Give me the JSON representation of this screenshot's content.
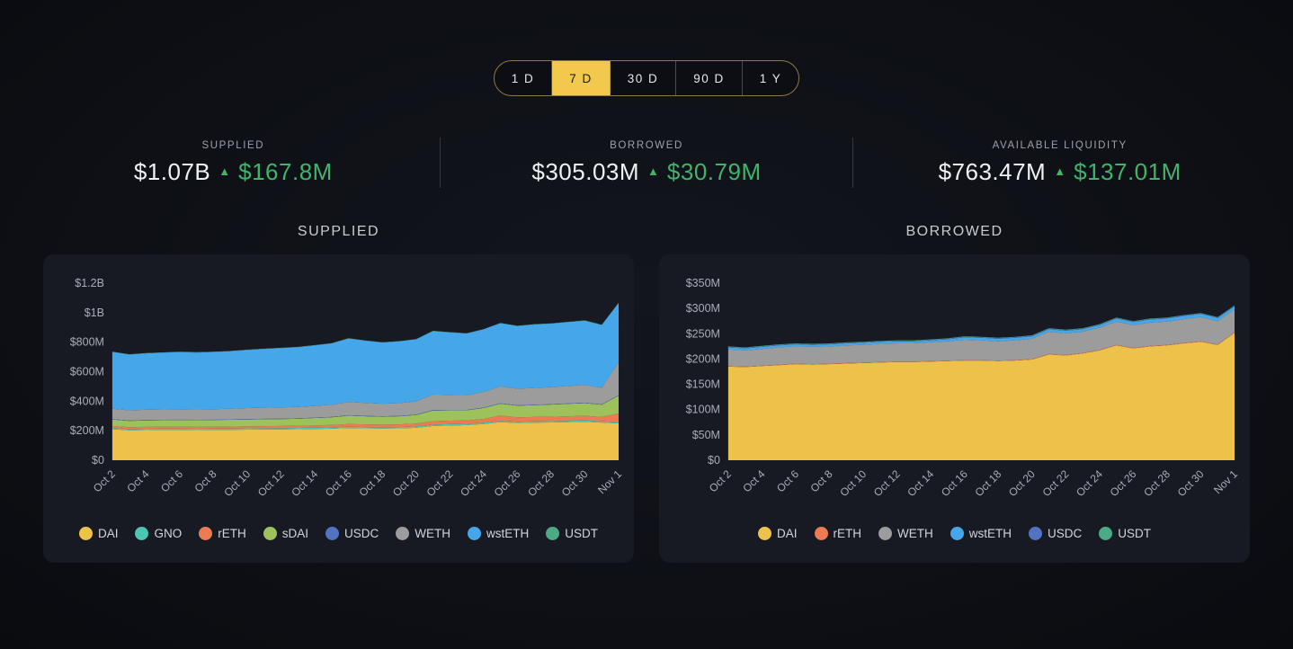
{
  "timeframe": {
    "options": [
      "1 D",
      "7 D",
      "30 D",
      "90 D",
      "1 Y"
    ],
    "active": "7 D"
  },
  "stats": [
    {
      "label": "SUPPLIED",
      "value": "$1.07B",
      "delta": "$167.8M",
      "direction": "up"
    },
    {
      "label": "BORROWED",
      "value": "$305.03M",
      "delta": "$30.79M",
      "direction": "up"
    },
    {
      "label": "AVAILABLE LIQUIDITY",
      "value": "$763.47M",
      "delta": "$137.01M",
      "direction": "up"
    }
  ],
  "colors": {
    "accent_green": "#3fb56b",
    "selector_active": "#f2c94c",
    "selector_border": "#8f7a42",
    "panel_bg": "#181a23"
  },
  "chart_data": [
    {
      "type": "area",
      "stacked": true,
      "title": "SUPPLIED",
      "unit": "$M",
      "legend_position": "bottom",
      "grid": false,
      "ylim": [
        0,
        1200
      ],
      "yticks": [
        {
          "label": "$1.2B",
          "value": 1200
        },
        {
          "label": "$1B",
          "value": 1000
        },
        {
          "label": "$800M",
          "value": 800
        },
        {
          "label": "$600M",
          "value": 600
        },
        {
          "label": "$400M",
          "value": 400
        },
        {
          "label": "$200M",
          "value": 200
        },
        {
          "label": "$0",
          "value": 0
        }
      ],
      "x": [
        "Oct 2",
        "Oct 3",
        "Oct 4",
        "Oct 5",
        "Oct 6",
        "Oct 7",
        "Oct 8",
        "Oct 9",
        "Oct 10",
        "Oct 11",
        "Oct 12",
        "Oct 13",
        "Oct 14",
        "Oct 15",
        "Oct 16",
        "Oct 17",
        "Oct 18",
        "Oct 19",
        "Oct 20",
        "Oct 21",
        "Oct 22",
        "Oct 23",
        "Oct 24",
        "Oct 25",
        "Oct 26",
        "Oct 27",
        "Oct 28",
        "Oct 29",
        "Oct 30",
        "Oct 31",
        "Nov 1"
      ],
      "xtick_indices": [
        0,
        2,
        4,
        6,
        8,
        10,
        12,
        14,
        16,
        18,
        20,
        22,
        24,
        26,
        28,
        30
      ],
      "series": [
        {
          "name": "DAI",
          "color": "#edc24a",
          "values": [
            210,
            202,
            204,
            205,
            205,
            204,
            205,
            206,
            207,
            208,
            209,
            210,
            212,
            214,
            218,
            216,
            215,
            216,
            220,
            232,
            235,
            238,
            245,
            258,
            252,
            254,
            256,
            258,
            260,
            255,
            250
          ]
        },
        {
          "name": "GNO",
          "color": "#4cc6b2",
          "values": [
            9,
            9,
            9,
            9,
            9,
            9,
            9,
            9,
            9,
            9,
            9,
            9,
            9,
            9,
            9,
            9,
            9,
            9,
            9,
            9,
            9,
            9,
            9,
            9,
            9,
            9,
            9,
            9,
            9,
            9,
            9
          ]
        },
        {
          "name": "rETH",
          "color": "#ed7b52",
          "values": [
            13,
            13,
            13,
            13,
            13,
            13,
            13,
            13,
            14,
            14,
            14,
            14,
            15,
            16,
            18,
            18,
            17,
            18,
            19,
            24,
            24,
            23,
            26,
            36,
            30,
            30,
            30,
            31,
            32,
            30,
            58
          ]
        },
        {
          "name": "sDAI",
          "color": "#9ec25b",
          "values": [
            44,
            43,
            44,
            44,
            45,
            45,
            45,
            46,
            46,
            47,
            47,
            48,
            50,
            52,
            57,
            55,
            54,
            55,
            58,
            72,
            70,
            68,
            74,
            80,
            78,
            80,
            82,
            84,
            86,
            82,
            120
          ]
        },
        {
          "name": "USDC",
          "color": "#5273c2",
          "values": [
            3,
            3,
            3,
            3,
            3,
            3,
            3,
            3,
            3,
            3,
            3,
            3,
            3,
            3,
            3,
            3,
            3,
            3,
            3,
            3,
            3,
            3,
            3,
            3,
            3,
            3,
            3,
            3,
            3,
            3,
            3
          ]
        },
        {
          "name": "WETH",
          "color": "#9c9c9c",
          "values": [
            70,
            68,
            69,
            70,
            71,
            70,
            71,
            72,
            74,
            75,
            76,
            77,
            79,
            82,
            90,
            87,
            85,
            86,
            90,
            105,
            102,
            100,
            106,
            115,
            112,
            114,
            116,
            118,
            120,
            112,
            225
          ]
        },
        {
          "name": "wstETH",
          "color": "#45a7ea",
          "values": [
            385,
            378,
            382,
            385,
            387,
            386,
            388,
            390,
            394,
            398,
            402,
            405,
            410,
            416,
            430,
            422,
            415,
            418,
            420,
            430,
            423,
            418,
            424,
            428,
            425,
            430,
            430,
            433,
            436,
            425,
            400
          ]
        },
        {
          "name": "USDT",
          "color": "#4caa87",
          "values": [
            2,
            2,
            2,
            2,
            2,
            2,
            2,
            2,
            2,
            2,
            2,
            2,
            2,
            2,
            2,
            2,
            2,
            2,
            2,
            2,
            2,
            2,
            2,
            2,
            2,
            2,
            2,
            2,
            2,
            2,
            2
          ]
        }
      ]
    },
    {
      "type": "area",
      "stacked": true,
      "title": "BORROWED",
      "unit": "$M",
      "legend_position": "bottom",
      "grid": false,
      "ylim": [
        0,
        350
      ],
      "yticks": [
        {
          "label": "$350M",
          "value": 350
        },
        {
          "label": "$300M",
          "value": 300
        },
        {
          "label": "$250M",
          "value": 250
        },
        {
          "label": "$200M",
          "value": 200
        },
        {
          "label": "$150M",
          "value": 150
        },
        {
          "label": "$100M",
          "value": 100
        },
        {
          "label": "$50M",
          "value": 50
        },
        {
          "label": "$0",
          "value": 0
        }
      ],
      "x": [
        "Oct 2",
        "Oct 3",
        "Oct 4",
        "Oct 5",
        "Oct 6",
        "Oct 7",
        "Oct 8",
        "Oct 9",
        "Oct 10",
        "Oct 11",
        "Oct 12",
        "Oct 13",
        "Oct 14",
        "Oct 15",
        "Oct 16",
        "Oct 17",
        "Oct 18",
        "Oct 19",
        "Oct 20",
        "Oct 21",
        "Oct 22",
        "Oct 23",
        "Oct 24",
        "Oct 25",
        "Oct 26",
        "Oct 27",
        "Oct 28",
        "Oct 29",
        "Oct 30",
        "Oct 31",
        "Nov 1"
      ],
      "xtick_indices": [
        0,
        2,
        4,
        6,
        8,
        10,
        12,
        14,
        16,
        18,
        20,
        22,
        24,
        26,
        28,
        30
      ],
      "series": [
        {
          "name": "DAI",
          "color": "#edc24a",
          "values": [
            185,
            184,
            186,
            188,
            190,
            189,
            190,
            191,
            192,
            193,
            194,
            194,
            195,
            196,
            197,
            197,
            196,
            197,
            199,
            209,
            207,
            211,
            217,
            227,
            221,
            225,
            227,
            231,
            234,
            228,
            252
          ]
        },
        {
          "name": "rETH",
          "color": "#ed7b52",
          "values": [
            1,
            1,
            1,
            1,
            1,
            1,
            1,
            1,
            1,
            1,
            1,
            1,
            1,
            1,
            1,
            1,
            1,
            1,
            1,
            1,
            1,
            1,
            1,
            1,
            1,
            1,
            1,
            1,
            1,
            1,
            1
          ]
        },
        {
          "name": "WETH",
          "color": "#9c9c9c",
          "values": [
            33,
            32,
            33,
            34,
            34,
            34,
            34,
            35,
            35,
            36,
            36,
            36,
            37,
            38,
            40,
            39,
            38,
            39,
            40,
            44,
            43,
            42,
            44,
            46,
            45,
            46,
            46,
            47,
            48,
            46,
            45
          ]
        },
        {
          "name": "wstETH",
          "color": "#45a7ea",
          "values": [
            4,
            4,
            4,
            4,
            4,
            4,
            4,
            4,
            4,
            4,
            4,
            4,
            4,
            4,
            5,
            5,
            5,
            5,
            5,
            5,
            5,
            5,
            5,
            6,
            6,
            6,
            6,
            6,
            6,
            6,
            6
          ]
        },
        {
          "name": "USDC",
          "color": "#5273c2",
          "values": [
            1,
            1,
            1,
            1,
            1,
            1,
            1,
            1,
            1,
            1,
            1,
            1,
            1,
            1,
            1,
            1,
            1,
            1,
            1,
            1,
            1,
            1,
            1,
            1,
            1,
            1,
            1,
            1,
            1,
            1,
            1
          ]
        },
        {
          "name": "USDT",
          "color": "#4caa87",
          "values": [
            1,
            1,
            1,
            1,
            1,
            1,
            1,
            1,
            1,
            1,
            1,
            1,
            1,
            1,
            1,
            1,
            1,
            1,
            1,
            1,
            1,
            1,
            1,
            1,
            1,
            1,
            1,
            1,
            1,
            1,
            1
          ]
        }
      ]
    }
  ]
}
